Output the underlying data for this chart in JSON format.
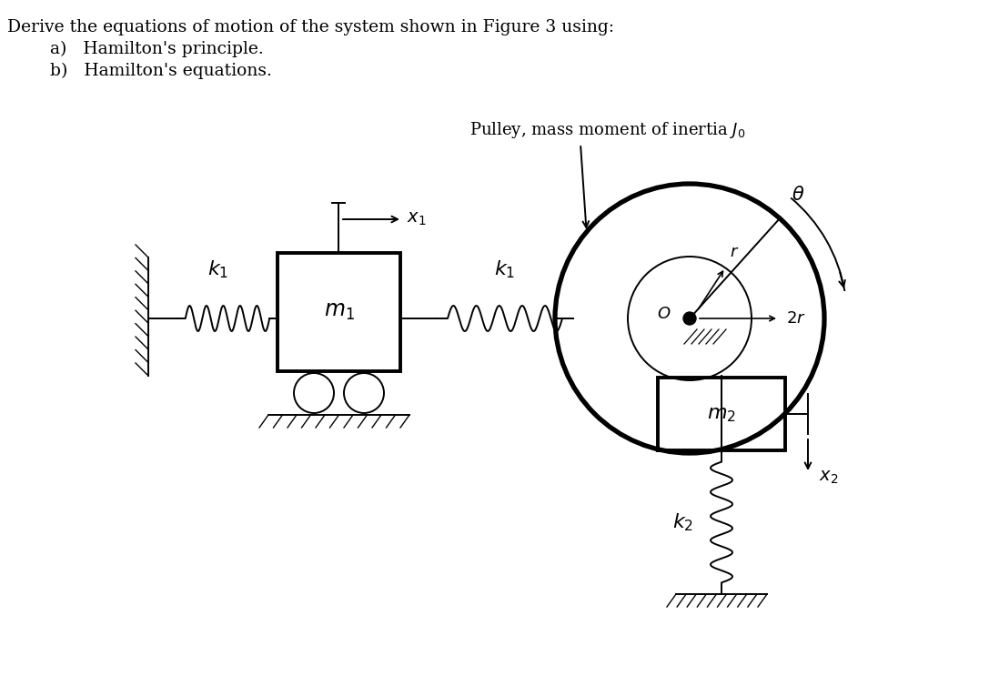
{
  "bg_color": "#ffffff",
  "text_color": "#000000",
  "line_color": "#000000",
  "title_line1": "Derive the equations of motion of the system shown in Figure 3 using:",
  "title_line2a": "a)   Hamilton's principle.",
  "title_line2b": "b)   Hamilton's equations.",
  "pulley_label": "Pulley, mass moment of inertia $J_0$",
  "fig_width": 10.87,
  "fig_height": 7.43,
  "dpi": 100
}
